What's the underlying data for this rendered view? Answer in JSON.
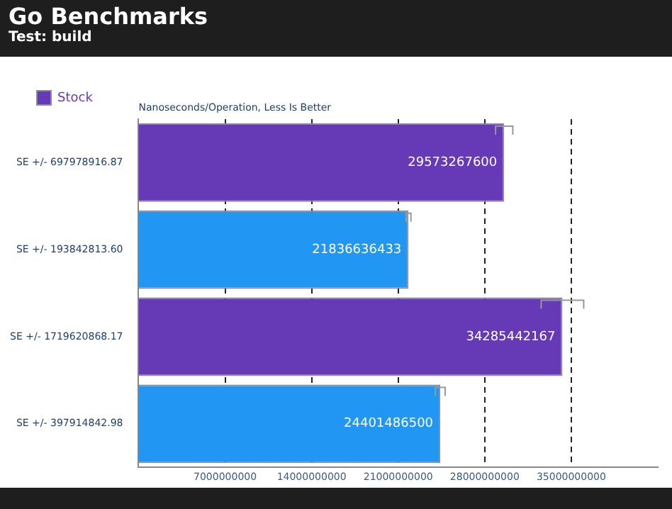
{
  "chart_data": {
    "type": "bar",
    "orientation": "horizontal",
    "title": "Go Benchmarks",
    "subtitle": "Test: build",
    "categories": [
      "SE +/- 697978916.87",
      "SE +/- 193842813.60",
      "SE +/- 1719620868.17",
      "SE +/- 397914842.98"
    ],
    "series": [
      {
        "name": "Stock",
        "color": "#6639b6",
        "values": [
          29573267600,
          null,
          34285442167,
          null
        ],
        "errors": [
          697978916.87,
          null,
          1719620868.17,
          null
        ]
      },
      {
        "color": "#2196f3",
        "values": [
          null,
          21836636433,
          null,
          24401486500
        ],
        "errors": [
          null,
          193842813.6,
          null,
          397914842.98
        ]
      }
    ],
    "xlim": [
      0,
      42000000000
    ],
    "xticks": [
      7000000000,
      14000000000,
      21000000000,
      28000000000,
      35000000000
    ],
    "grid": "x",
    "legend": "top left",
    "data_labels": true,
    "annotations": [
      "Nanoseconds/Operation, Less Is Better"
    ]
  }
}
